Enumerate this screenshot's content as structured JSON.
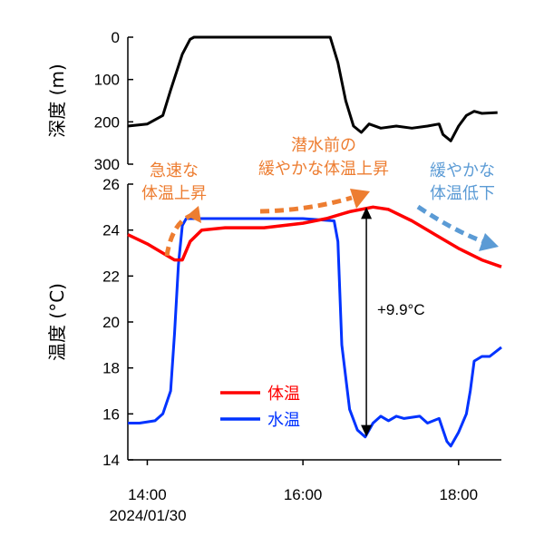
{
  "chart_data": [
    {
      "type": "line",
      "ylabel": "深度 (m)",
      "ylim": [
        300,
        0
      ],
      "yticks": [
        "0",
        "100",
        "200",
        "300"
      ],
      "series": [
        {
          "color": "#000000",
          "x": [
            13.75,
            14.0,
            14.2,
            14.3,
            14.45,
            14.55,
            14.6,
            16.35,
            16.45,
            16.55,
            16.65,
            16.75,
            16.85,
            17.0,
            17.2,
            17.4,
            17.6,
            17.75,
            17.8,
            17.9,
            18.0,
            18.1,
            18.2,
            18.3,
            18.5
          ],
          "values": [
            210,
            205,
            185,
            125,
            40,
            5,
            0,
            0,
            60,
            150,
            210,
            225,
            205,
            215,
            210,
            215,
            210,
            205,
            230,
            245,
            210,
            185,
            175,
            180,
            178
          ]
        }
      ]
    },
    {
      "type": "line",
      "ylabel": "温度 (°C)",
      "ylim": [
        14,
        26
      ],
      "yticks": [
        "14",
        "16",
        "18",
        "20",
        "22",
        "24",
        "26"
      ],
      "xlim": [
        13.75,
        18.55
      ],
      "xticks": [
        {
          "value": 14,
          "label": "14:00"
        },
        {
          "value": 16,
          "label": "16:00"
        },
        {
          "value": 18,
          "label": "18:00"
        }
      ],
      "date_label": "2024/01/30",
      "series": [
        {
          "name": "体温",
          "color": "#FF0000",
          "x": [
            13.75,
            14.0,
            14.2,
            14.35,
            14.45,
            14.55,
            14.7,
            15.0,
            15.5,
            16.0,
            16.3,
            16.6,
            16.9,
            17.1,
            17.4,
            17.7,
            18.0,
            18.3,
            18.55
          ],
          "values": [
            23.8,
            23.4,
            23.0,
            22.7,
            22.7,
            23.5,
            24.0,
            24.1,
            24.1,
            24.3,
            24.5,
            24.8,
            25.0,
            24.9,
            24.4,
            23.8,
            23.2,
            22.7,
            22.4
          ]
        },
        {
          "name": "水温",
          "color": "#0033FF",
          "x": [
            13.75,
            13.9,
            14.1,
            14.2,
            14.3,
            14.35,
            14.4,
            14.45,
            14.5,
            14.55,
            14.7,
            15.0,
            15.5,
            16.0,
            16.4,
            16.45,
            16.5,
            16.6,
            16.7,
            16.8,
            16.9,
            17.0,
            17.1,
            17.2,
            17.3,
            17.5,
            17.6,
            17.75,
            17.8,
            17.85,
            17.9,
            18.0,
            18.1,
            18.15,
            18.2,
            18.3,
            18.4,
            18.55
          ],
          "values": [
            15.6,
            15.6,
            15.7,
            16.0,
            17.0,
            19.5,
            22.5,
            24.2,
            24.5,
            24.5,
            24.5,
            24.5,
            24.5,
            24.5,
            24.4,
            23.5,
            19.0,
            16.2,
            15.3,
            15.0,
            15.6,
            15.9,
            15.7,
            15.9,
            15.8,
            15.9,
            15.6,
            15.8,
            15.3,
            14.8,
            14.6,
            15.2,
            16.0,
            17.0,
            18.3,
            18.5,
            18.5,
            18.9
          ]
        }
      ],
      "legend_position": "bottom-left",
      "annotations": [
        {
          "text": "+9.9°C"
        },
        {
          "lines": [
            "急速な",
            "体温上昇"
          ],
          "color": "#ED7D31"
        },
        {
          "lines": [
            "潜水前の",
            "緩やかな体温上昇"
          ],
          "color": "#ED7D31"
        },
        {
          "lines": [
            "緩やかな",
            "体温低下"
          ],
          "color": "#5B9BD5"
        }
      ],
      "difference": {
        "top": 25.0,
        "bottom": 15.0,
        "x": 16.85
      }
    }
  ]
}
